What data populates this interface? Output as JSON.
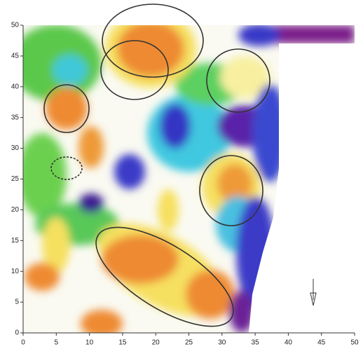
{
  "chart_data": {
    "type": "contour",
    "xlim": [
      0,
      50
    ],
    "xticks": [
      0,
      5,
      10,
      15,
      20,
      25,
      30,
      35,
      40,
      45,
      50
    ],
    "ylim": [
      0,
      50
    ],
    "yticks": [
      0,
      5,
      10,
      15,
      20,
      25,
      30,
      35,
      40,
      45,
      50
    ]
  }
}
